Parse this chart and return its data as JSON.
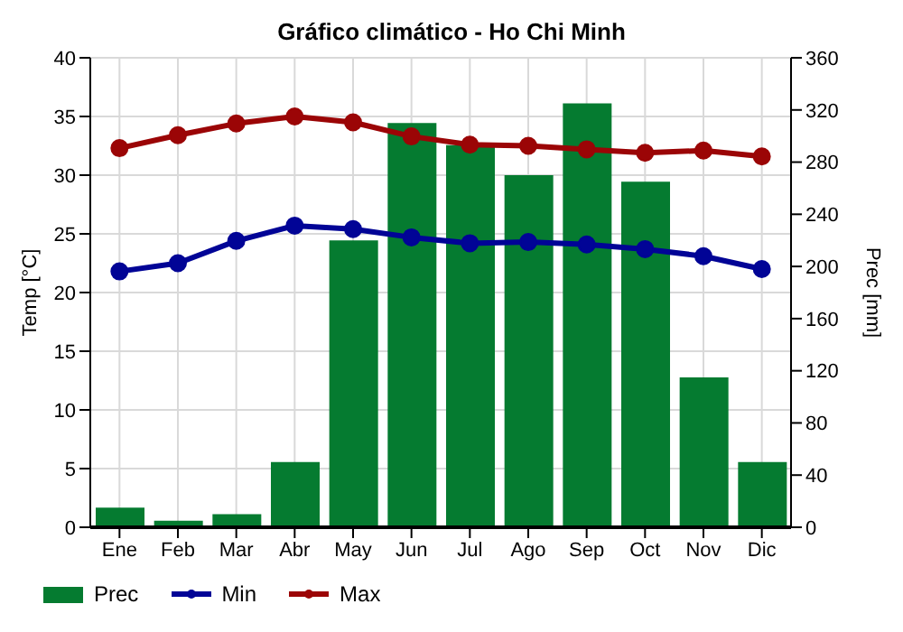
{
  "chart_data": {
    "type": "bar",
    "title": "Gráfico climático - Ho Chi Minh",
    "ylabel": "Temp [°C]",
    "y2label": "Prec [mm]",
    "categories": [
      "Ene",
      "Feb",
      "Mar",
      "Abr",
      "May",
      "Jun",
      "Jul",
      "Ago",
      "Sep",
      "Oct",
      "Nov",
      "Dic"
    ],
    "series": [
      {
        "name": "Prec",
        "axis": "y2",
        "color": "#057b30",
        "values": [
          15,
          5,
          10,
          50,
          220,
          310,
          293,
          270,
          325,
          265,
          115,
          50
        ]
      },
      {
        "name": "Min",
        "type": "line",
        "color": "#010496",
        "values": [
          21.8,
          22.5,
          24.4,
          25.7,
          25.4,
          24.7,
          24.2,
          24.3,
          24.1,
          23.7,
          23.1,
          22.0
        ]
      },
      {
        "name": "Max",
        "type": "line",
        "color": "#9b0506",
        "values": [
          32.3,
          33.4,
          34.4,
          35.0,
          34.5,
          33.3,
          32.6,
          32.5,
          32.2,
          31.9,
          32.1,
          31.6
        ]
      }
    ],
    "ylim": [
      0,
      40
    ],
    "yticks": [
      0,
      5,
      10,
      15,
      20,
      25,
      30,
      35,
      40
    ],
    "y2lim": [
      0,
      360
    ],
    "y2ticks": [
      0,
      40,
      80,
      120,
      160,
      200,
      240,
      280,
      320,
      360
    ],
    "grid": true,
    "legend": "bottom left",
    "marker": "circle"
  }
}
